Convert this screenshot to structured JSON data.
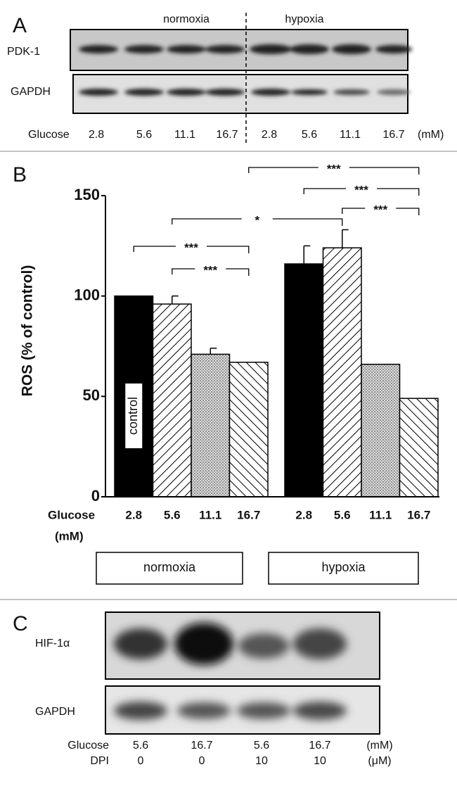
{
  "panel_a": {
    "label": "A",
    "conditions": [
      "normoxia",
      "hypoxia"
    ],
    "rows": [
      "PDK-1",
      "GAPDH"
    ],
    "axis_label": "Glucose",
    "lanes": [
      "2.8",
      "5.6",
      "11.1",
      "16.7",
      "2.8",
      "5.6",
      "11.1",
      "16.7"
    ],
    "unit": "(mM)"
  },
  "chart_data": {
    "type": "bar",
    "label": "B",
    "ylabel": "ROS (% of control)",
    "x_label": "Glucose",
    "x_unit": "(mM)",
    "categories": [
      "normoxia",
      "hypoxia"
    ],
    "series": [
      {
        "name": "2.8",
        "color": "#000000",
        "pattern": "solid",
        "values": [
          100,
          116
        ],
        "errors": [
          null,
          9
        ]
      },
      {
        "name": "5.6",
        "color": "#000000",
        "pattern": "backslash",
        "values": [
          96,
          124
        ],
        "errors": [
          4,
          9
        ]
      },
      {
        "name": "11.1",
        "color": "#000000",
        "pattern": "dots",
        "values": [
          71,
          66
        ],
        "errors": [
          3,
          null
        ]
      },
      {
        "name": "16.7",
        "color": "#000000",
        "pattern": "slash",
        "values": [
          67,
          49
        ],
        "errors": [
          null,
          null
        ]
      }
    ],
    "ylim": [
      0,
      150
    ],
    "yticks": [
      0,
      50,
      100,
      150
    ],
    "annotations": [
      {
        "text": "control",
        "group": 0,
        "series": 0
      }
    ],
    "comparisons": [
      {
        "label": "***",
        "from": [
          0,
          3
        ],
        "to": [
          1,
          3
        ]
      },
      {
        "label": "***",
        "from": [
          1,
          0
        ],
        "to": [
          1,
          3
        ]
      },
      {
        "label": "***",
        "from": [
          1,
          1
        ],
        "to": [
          1,
          3
        ]
      },
      {
        "label": "*",
        "from": [
          0,
          1
        ],
        "to": [
          1,
          1
        ]
      },
      {
        "label": "***",
        "from": [
          0,
          0
        ],
        "to": [
          0,
          3
        ]
      },
      {
        "label": "***",
        "from": [
          0,
          1
        ],
        "to": [
          0,
          3
        ]
      }
    ]
  },
  "panel_c": {
    "label": "C",
    "rows": [
      "HIF-1α",
      "GAPDH"
    ],
    "conditions": [
      {
        "name": "Glucose",
        "values": [
          "5.6",
          "16.7",
          "5.6",
          "16.7"
        ],
        "unit": "(mM)"
      },
      {
        "name": "DPI",
        "values": [
          "0",
          "0",
          "10",
          "10"
        ],
        "unit": "(μM)"
      }
    ]
  }
}
